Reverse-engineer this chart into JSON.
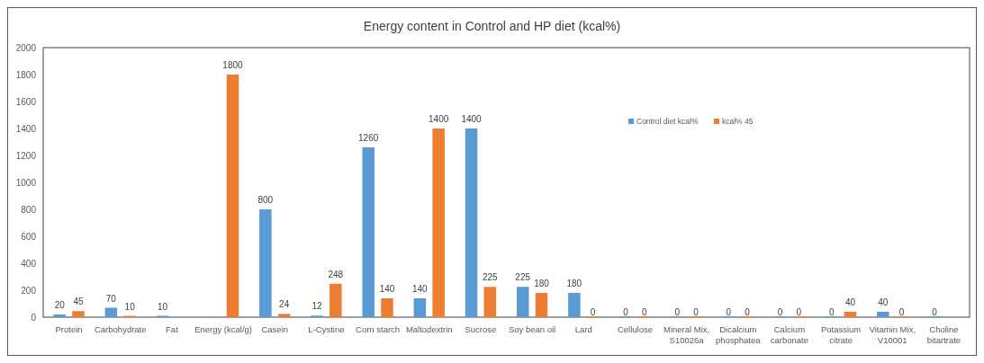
{
  "chart_data": {
    "type": "bar",
    "title": "Energy content in Control and HP diet (kcal%)",
    "categories": [
      "Protein",
      "Carbohydrate",
      "Fat",
      "Energy (kcal/g)",
      "Casein",
      "L-Cystine",
      "Corn starch",
      "Maltodextrin",
      "Sucrose",
      "Soy bean oil",
      "Lard",
      "Cellulose",
      "Mineral Mix, S10026a",
      "Dicalcium phosphatea",
      "Calcium carbonate",
      "Potassium citrate",
      "Vitamin Mix, V10001",
      "Choline bitartrate"
    ],
    "series": [
      {
        "name": "Control diet kcal%",
        "color": "#5b9bd5",
        "values": [
          20,
          70,
          10,
          null,
          800,
          12,
          1260,
          140,
          1400,
          225,
          180,
          0,
          0,
          0,
          0,
          0,
          40,
          0
        ]
      },
      {
        "name": "kcal% 45",
        "color": "#ed7d31",
        "values": [
          45,
          10,
          null,
          1800,
          24,
          248,
          140,
          1400,
          225,
          180,
          0,
          0,
          0,
          0,
          0,
          40,
          0,
          null
        ]
      }
    ],
    "ylim": [
      0,
      2000
    ],
    "yticks": [
      0,
      200,
      400,
      600,
      800,
      1000,
      1200,
      1400,
      1600,
      1800,
      2000
    ],
    "data_labels": true,
    "legend": "top right",
    "grid": false
  }
}
